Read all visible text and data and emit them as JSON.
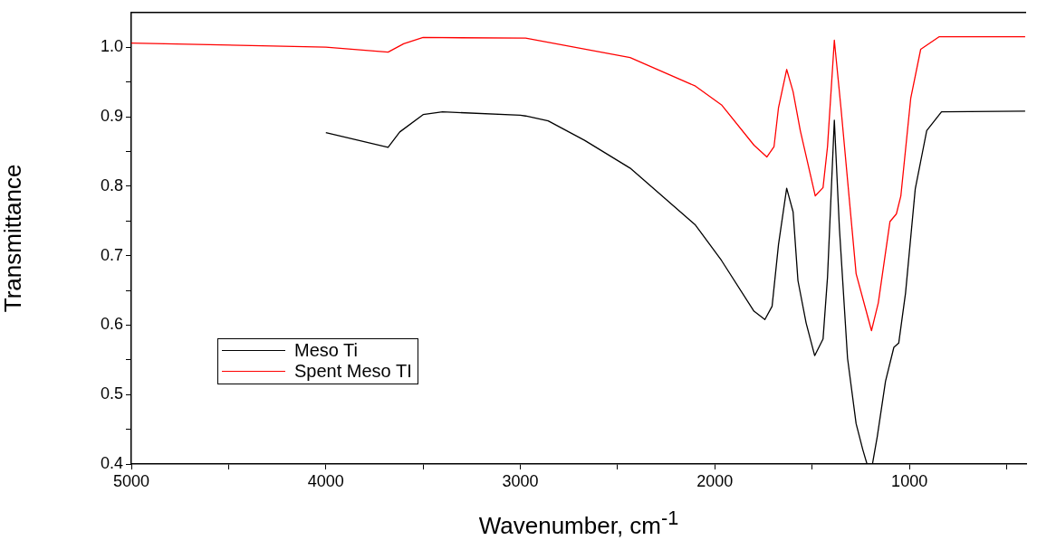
{
  "chart_data": {
    "type": "line",
    "xlabel": "Wavenumber, cm$^{-1}$",
    "ylabel": "Transmittance",
    "xlim": [
      5000,
      400
    ],
    "ylim": [
      0.4,
      1.05
    ],
    "xticks": [
      5000,
      {
        "value": 4500,
        "label": null
      },
      4000,
      {
        "value": 3500,
        "label": null
      },
      3000,
      {
        "value": 2500,
        "label": null
      },
      2000,
      {
        "value": 1500,
        "label": null
      },
      1000,
      {
        "value": 500,
        "label": null
      }
    ],
    "yticks": [
      {
        "value": 0.4,
        "label": "0.4"
      },
      {
        "value": 0.45,
        "label": null
      },
      {
        "value": 0.5,
        "label": "0.5"
      },
      {
        "value": 0.55,
        "label": null
      },
      {
        "value": 0.6,
        "label": "0.6"
      },
      {
        "value": 0.65,
        "label": null
      },
      {
        "value": 0.7,
        "label": "0.7"
      },
      {
        "value": 0.75,
        "label": null
      },
      {
        "value": 0.8,
        "label": "0.8"
      },
      {
        "value": 0.85,
        "label": null
      },
      {
        "value": 0.9,
        "label": "0.9"
      },
      {
        "value": 0.95,
        "label": null
      },
      {
        "value": 1.0,
        "label": "1.0"
      }
    ],
    "grid": false,
    "legend": "bottom left",
    "marker": "none",
    "line_style": "solid",
    "series": [
      {
        "name": "Meso Ti",
        "color": "#000000",
        "x": [
          4000,
          3680,
          3620,
          3500,
          3400,
          3000,
          2973,
          2857,
          2670,
          2436,
          2100,
          1966,
          1799,
          1743,
          1706,
          1673,
          1631,
          1598,
          1573,
          1531,
          1487,
          1444,
          1421,
          1386,
          1360,
          1318,
          1274,
          1240,
          1218,
          1190,
          1165,
          1123,
          1080,
          1055,
          1020,
          970,
          911,
          835,
          405
        ],
        "values": [
          0.877,
          0.856,
          0.878,
          0.903,
          0.907,
          0.902,
          0.901,
          0.894,
          0.866,
          0.826,
          0.744,
          0.693,
          0.62,
          0.608,
          0.627,
          0.716,
          0.797,
          0.763,
          0.664,
          0.603,
          0.556,
          0.58,
          0.669,
          0.895,
          0.74,
          0.552,
          0.458,
          0.421,
          0.4,
          0.4,
          0.44,
          0.519,
          0.568,
          0.574,
          0.646,
          0.796,
          0.88,
          0.907,
          0.908
        ]
      },
      {
        "name": "Spent Meso TI",
        "color": "#ff0000",
        "x": [
          5000,
          4000,
          3680,
          3600,
          3500,
          2973,
          2436,
          2100,
          1966,
          1799,
          1733,
          1696,
          1673,
          1631,
          1598,
          1561,
          1484,
          1444,
          1421,
          1386,
          1352,
          1274,
          1195,
          1160,
          1100,
          1067,
          1044,
          993,
          942,
          848,
          405
        ],
        "values": [
          1.006,
          1.0,
          0.993,
          1.005,
          1.014,
          1.013,
          0.985,
          0.944,
          0.917,
          0.859,
          0.842,
          0.857,
          0.913,
          0.968,
          0.936,
          0.88,
          0.786,
          0.798,
          0.857,
          1.01,
          0.913,
          0.674,
          0.592,
          0.632,
          0.749,
          0.76,
          0.786,
          0.927,
          0.997,
          1.015,
          1.015
        ]
      }
    ]
  }
}
